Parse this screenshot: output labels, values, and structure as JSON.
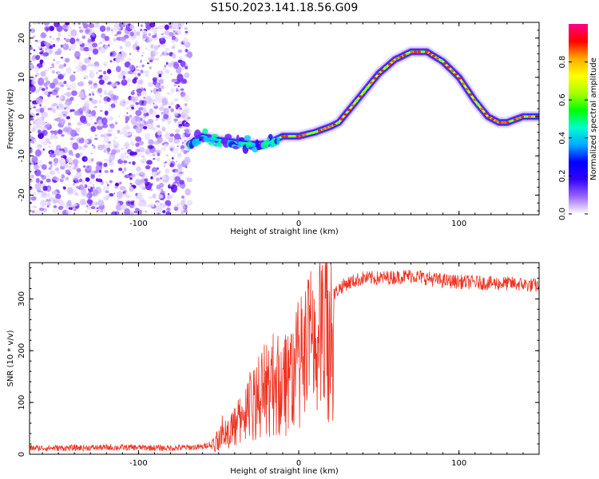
{
  "title": "S150.2023.141.18.56.G09",
  "colors": {
    "snr_line": "#ee3322",
    "axis": "#000000"
  },
  "chart_data": [
    {
      "type": "heatmap",
      "xlabel": "Height of straight line (km)",
      "ylabel": "Frequency (Hz)",
      "xlim": [
        -168,
        150
      ],
      "ylim": [
        -25,
        24
      ],
      "x_ticks": [
        -100,
        0,
        100
      ],
      "y_ticks": [
        -20,
        -10,
        0,
        10,
        20
      ],
      "colorbar": {
        "label": "Normalized spectral amplitude",
        "ticks": [
          0.0,
          0.2,
          0.4,
          0.6,
          0.8
        ],
        "colormap": [
          "#ffffff",
          "#9966ff",
          "#3300ff",
          "#0000ff",
          "#00aaff",
          "#00ffcc",
          "#00ff00",
          "#aaff00",
          "#ffff00",
          "#ffaa00",
          "#ff0000",
          "#ff0088"
        ]
      },
      "noise_region_x": [
        -168,
        -68
      ],
      "ridge": {
        "x": [
          -68,
          -60,
          -50,
          -40,
          -30,
          -20,
          -15,
          -10,
          0,
          10,
          20,
          25,
          30,
          40,
          50,
          60,
          70,
          80,
          90,
          100,
          110,
          118,
          125,
          130,
          140,
          150
        ],
        "y": [
          -7,
          -5,
          -6,
          -6.5,
          -7,
          -7,
          -6,
          -5,
          -5,
          -4,
          -2.5,
          -1.5,
          1,
          6,
          11,
          14.5,
          16.5,
          16.5,
          14,
          10,
          4,
          0,
          -1.5,
          -1.5,
          0,
          0
        ]
      }
    },
    {
      "type": "line",
      "xlabel": "Height of straight line (km)",
      "ylabel": "SNR (10 * v/v)",
      "xlim": [
        -168,
        150
      ],
      "ylim": [
        0,
        370
      ],
      "x_ticks": [
        -100,
        0,
        100
      ],
      "y_ticks": [
        0,
        100,
        200,
        300
      ],
      "series": [
        {
          "x": [
            -168,
            -150,
            -120,
            -100,
            -80,
            -60,
            -52,
            -48,
            -45,
            -42,
            -38,
            -35,
            -30,
            -25,
            -20,
            -15,
            -10,
            -5,
            0,
            5,
            10,
            15,
            20,
            25,
            30,
            40,
            50,
            60,
            70,
            80,
            90,
            100,
            110,
            120,
            130,
            140,
            150
          ],
          "y": [
            12,
            12,
            13,
            13,
            12,
            14,
            25,
            55,
            40,
            60,
            70,
            90,
            110,
            130,
            150,
            160,
            170,
            180,
            200,
            230,
            260,
            280,
            300,
            320,
            330,
            340,
            340,
            342,
            345,
            340,
            335,
            333,
            332,
            330,
            330,
            328,
            325
          ]
        }
      ]
    }
  ]
}
